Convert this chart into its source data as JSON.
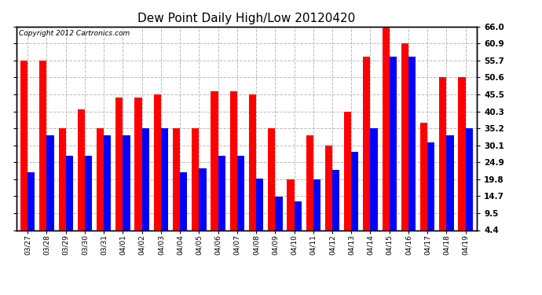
{
  "title": "Dew Point Daily High/Low 20120420",
  "copyright": "Copyright 2012 Cartronics.com",
  "categories": [
    "03/27",
    "03/28",
    "03/29",
    "03/30",
    "03/31",
    "04/01",
    "04/02",
    "04/03",
    "04/04",
    "04/05",
    "04/06",
    "04/07",
    "04/08",
    "04/09",
    "04/10",
    "04/11",
    "04/12",
    "04/13",
    "04/14",
    "04/15",
    "04/16",
    "04/17",
    "04/18",
    "04/19"
  ],
  "high_values": [
    55.7,
    55.7,
    35.2,
    41.0,
    35.2,
    44.6,
    44.6,
    45.5,
    35.2,
    35.2,
    46.4,
    46.4,
    45.5,
    35.2,
    19.8,
    33.0,
    30.1,
    40.3,
    57.0,
    66.0,
    61.0,
    37.0,
    50.6,
    50.6
  ],
  "low_values": [
    22.0,
    33.0,
    27.0,
    27.0,
    33.0,
    33.0,
    35.2,
    35.2,
    22.0,
    23.0,
    27.0,
    27.0,
    20.0,
    14.5,
    13.0,
    19.8,
    22.5,
    28.0,
    35.2,
    57.0,
    57.0,
    31.0,
    33.0,
    35.2
  ],
  "bar_color_high": "#FF0000",
  "bar_color_low": "#0000FF",
  "yticks": [
    4.4,
    9.5,
    14.7,
    19.8,
    24.9,
    30.1,
    35.2,
    40.3,
    45.5,
    50.6,
    55.7,
    60.9,
    66.0
  ],
  "ylim": [
    4.4,
    66.0
  ],
  "background_color": "#FFFFFF",
  "grid_color": "#BBBBBB",
  "title_fontsize": 11,
  "bar_width": 0.38
}
